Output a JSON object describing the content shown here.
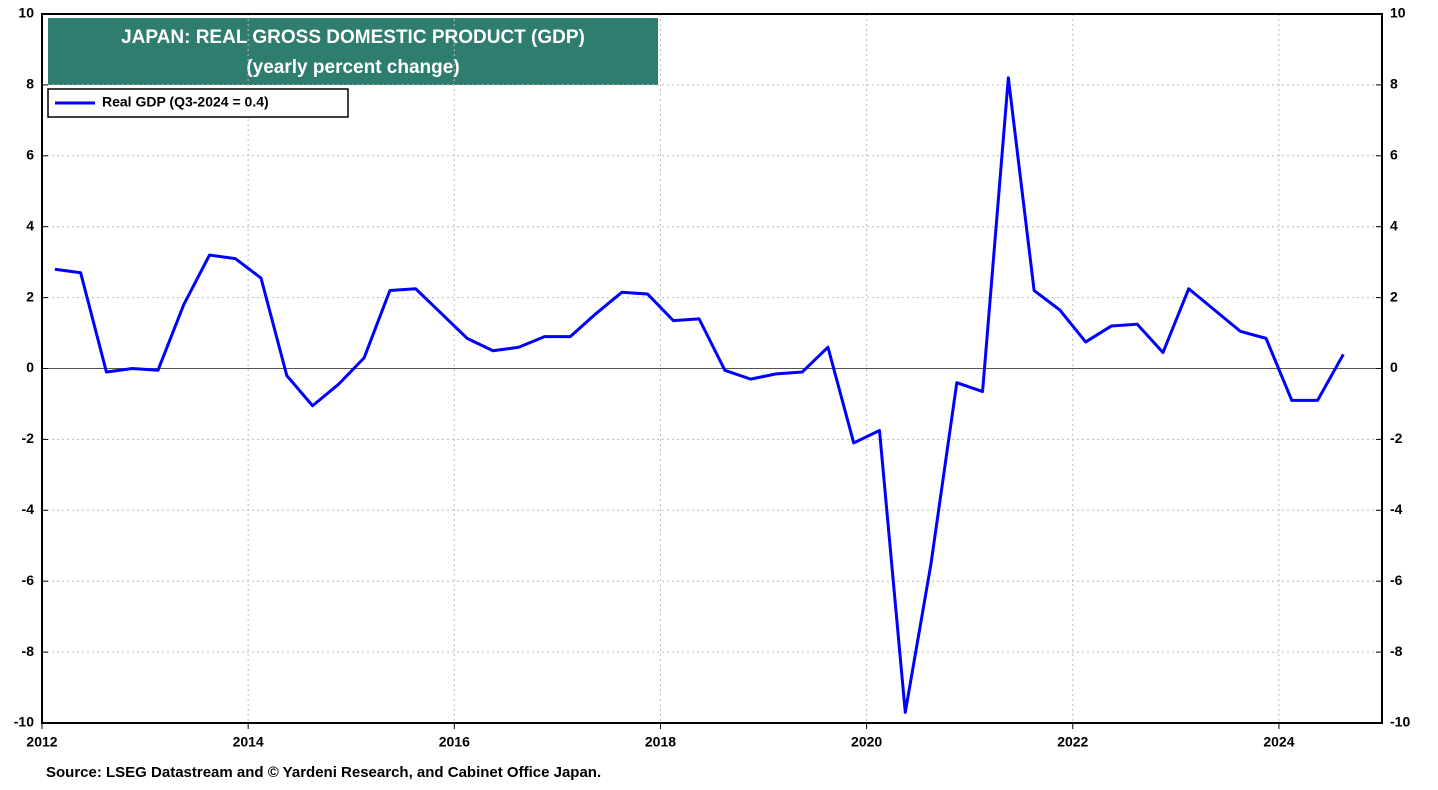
{
  "chart_data": {
    "type": "line",
    "title": "JAPAN: REAL GROSS DOMESTIC PRODUCT (GDP)",
    "subtitle": "(yearly percent change)",
    "source": "Source: LSEG Datastream and © Yardeni Research, and Cabinet Office Japan.",
    "x": [
      2012.125,
      2012.375,
      2012.625,
      2012.875,
      2013.125,
      2013.375,
      2013.625,
      2013.875,
      2014.125,
      2014.375,
      2014.625,
      2014.875,
      2015.125,
      2015.375,
      2015.625,
      2015.875,
      2016.125,
      2016.375,
      2016.625,
      2016.875,
      2017.125,
      2017.375,
      2017.625,
      2017.875,
      2018.125,
      2018.375,
      2018.625,
      2018.875,
      2019.125,
      2019.375,
      2019.625,
      2019.875,
      2020.125,
      2020.375,
      2020.625,
      2020.875,
      2021.125,
      2021.375,
      2021.625,
      2021.875,
      2022.125,
      2022.375,
      2022.625,
      2022.875,
      2023.125,
      2023.375,
      2023.625,
      2023.875,
      2024.125,
      2024.375,
      2024.625
    ],
    "series": [
      {
        "name": "Real GDP (Q3-2024 = 0.4)",
        "color": "#0000ff",
        "values": [
          2.8,
          2.7,
          -0.1,
          0.0,
          -0.05,
          1.8,
          3.2,
          3.1,
          2.55,
          -0.2,
          -1.05,
          -0.45,
          0.3,
          2.2,
          2.25,
          1.55,
          0.85,
          0.5,
          0.6,
          0.9,
          0.9,
          1.55,
          2.15,
          2.1,
          1.35,
          1.4,
          -0.05,
          -0.3,
          -0.15,
          -0.1,
          0.6,
          -2.1,
          -1.75,
          -9.7,
          -5.5,
          -0.4,
          -0.65,
          8.2,
          2.2,
          1.65,
          0.75,
          1.2,
          1.25,
          0.45,
          2.25,
          1.65,
          1.05,
          0.85,
          -0.9,
          -0.9,
          0.4
        ]
      }
    ],
    "xlim": [
      2012,
      2025
    ],
    "xticks": [
      2012,
      2014,
      2016,
      2018,
      2020,
      2022,
      2024
    ],
    "ylim": [
      -10,
      10
    ],
    "yticks": [
      -10,
      -8,
      -6,
      -4,
      -2,
      0,
      2,
      4,
      6,
      8,
      10
    ],
    "y2lim": [
      -10,
      10
    ],
    "y2ticks": [
      -10,
      -8,
      -6,
      -4,
      -2,
      0,
      2,
      4,
      6,
      8,
      10
    ],
    "grid": true,
    "legend": "top-left"
  }
}
